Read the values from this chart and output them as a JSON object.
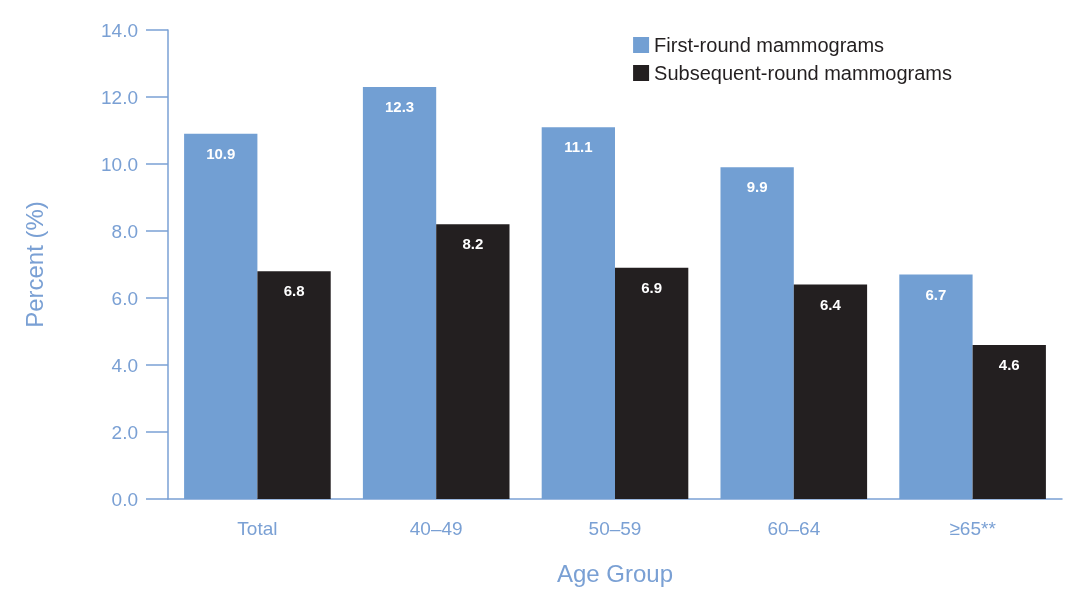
{
  "chart_data": {
    "type": "bar",
    "xlabel": "Age Group",
    "ylabel": "Percent (%)",
    "categories": [
      "Total",
      "40–49",
      "50–59",
      "60–64",
      "≥65**"
    ],
    "series": [
      {
        "name": "First-round mammograms",
        "color": "#729fd3",
        "values": [
          10.9,
          12.3,
          11.1,
          9.9,
          6.7
        ]
      },
      {
        "name": "Subsequent-round mammograms",
        "color": "#231f20",
        "values": [
          6.8,
          8.2,
          6.9,
          6.4,
          4.6
        ]
      }
    ],
    "ylim": [
      0,
      14
    ],
    "yticks": [
      {
        "value": 0,
        "label": "0.0"
      },
      {
        "value": 2,
        "label": "2.0"
      },
      {
        "value": 4,
        "label": "4.0"
      },
      {
        "value": 6,
        "label": "6.0"
      },
      {
        "value": 8,
        "label": "8.0"
      },
      {
        "value": 10,
        "label": "10.0"
      },
      {
        "value": 12,
        "label": "12.0"
      },
      {
        "value": 14,
        "label": "14.0"
      }
    ],
    "data_labels": true,
    "grid": false,
    "legend": "top right"
  }
}
